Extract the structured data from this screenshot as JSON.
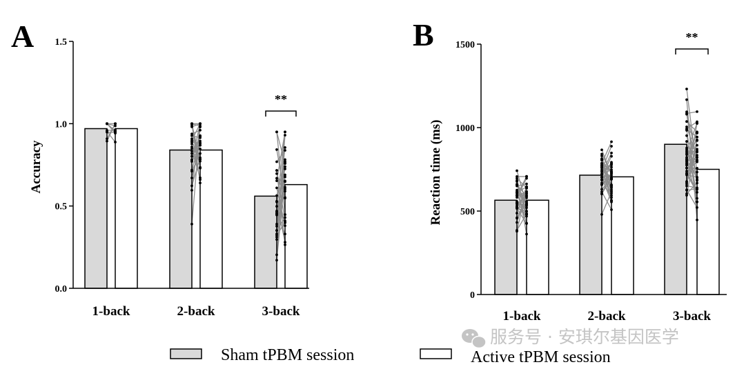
{
  "chart_data": [
    {
      "panel": "A",
      "type": "bar",
      "ylabel": "Accuracy",
      "ylim": [
        0,
        1.5
      ],
      "yticks": [
        "0.0",
        "0.5",
        "1.0",
        "1.5"
      ],
      "categories": [
        "1-back",
        "2-back",
        "3-back"
      ],
      "series": [
        {
          "name": "Sham tPBM session",
          "values": [
            0.97,
            0.84,
            0.56
          ]
        },
        {
          "name": "Active tPBM session",
          "values": [
            0.97,
            0.84,
            0.63
          ]
        }
      ],
      "significance": [
        {
          "category": "3-back",
          "label": "**"
        }
      ]
    },
    {
      "panel": "B",
      "type": "bar",
      "ylabel": "Reaction time (ms)",
      "ylim": [
        0,
        1500
      ],
      "yticks": [
        "0",
        "500",
        "1000",
        "1500"
      ],
      "categories": [
        "1-back",
        "2-back",
        "3-back"
      ],
      "series": [
        {
          "name": "Sham tPBM session",
          "values": [
            565,
            715,
            900
          ]
        },
        {
          "name": "Active tPBM session",
          "values": [
            565,
            705,
            750
          ]
        }
      ],
      "significance": [
        {
          "category": "3-back",
          "label": "**"
        }
      ]
    }
  ],
  "legend": [
    {
      "label": "Sham tPBM session",
      "color": "#d9d9d9"
    },
    {
      "label": "Active tPBM session",
      "color": "#ffffff"
    }
  ],
  "watermark": {
    "text": "服务号 · 安琪尔基因医学",
    "icon": "wechat-icon"
  }
}
